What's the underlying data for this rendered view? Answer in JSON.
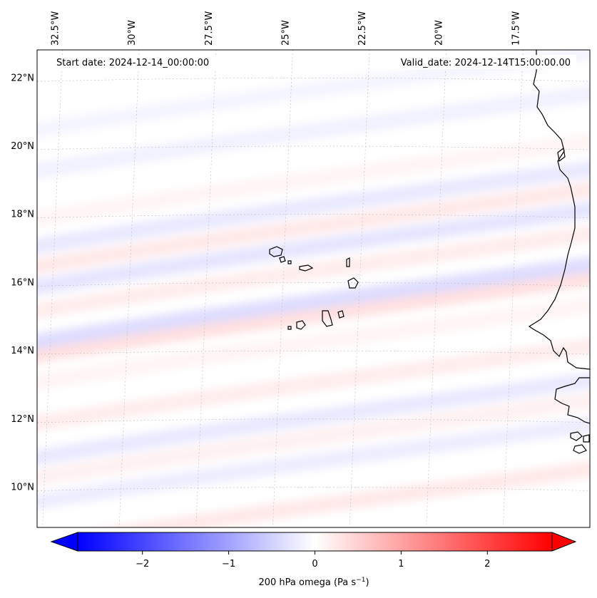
{
  "map": {
    "start_label": "Start date: 2024-12-14_00:00:00",
    "valid_label": "Valid_date: 2024-12-14T15:00:00.00",
    "lon_min": -33.0,
    "lon_max": -15.0,
    "lat_min": 8.8,
    "lat_max": 22.8,
    "lon_ticks": [
      {
        "value": -32.5,
        "label": "32.5°W"
      },
      {
        "value": -30.0,
        "label": "30°W"
      },
      {
        "value": -27.5,
        "label": "27.5°W"
      },
      {
        "value": -25.0,
        "label": "25°W"
      },
      {
        "value": -22.5,
        "label": "22.5°W"
      },
      {
        "value": -20.0,
        "label": "20°W"
      },
      {
        "value": -17.5,
        "label": "17.5°W"
      }
    ],
    "lat_ticks": [
      {
        "value": 10,
        "label": "10°N"
      },
      {
        "value": 12,
        "label": "12°N"
      },
      {
        "value": 14,
        "label": "14°N"
      },
      {
        "value": 16,
        "label": "16°N"
      },
      {
        "value": 18,
        "label": "18°N"
      },
      {
        "value": 20,
        "label": "20°N"
      },
      {
        "value": 22,
        "label": "22°N"
      }
    ],
    "field_bands": [
      {
        "lat": 9.6,
        "value": 0.6
      },
      {
        "lat": 10.9,
        "value": -0.5
      },
      {
        "lat": 11.6,
        "value": 0.4
      },
      {
        "lat": 12.2,
        "value": -0.6
      },
      {
        "lat": 13.2,
        "value": 0.5
      },
      {
        "lat": 14.4,
        "value": 0.3
      },
      {
        "lat": 15.2,
        "value": 0.8
      },
      {
        "lat": 15.6,
        "value": -0.9
      },
      {
        "lat": 16.5,
        "value": 0.5
      },
      {
        "lat": 17.2,
        "value": -0.7
      },
      {
        "lat": 17.8,
        "value": 0.6
      },
      {
        "lat": 18.4,
        "value": -0.6
      },
      {
        "lat": 19.2,
        "value": 0.3
      },
      {
        "lat": 20.6,
        "value": -0.4
      },
      {
        "lat": 21.8,
        "value": -0.3
      }
    ],
    "colors": {
      "negative": "#0000ff",
      "zero": "#ffffff",
      "positive": "#ff0000",
      "coastline": "#000000"
    }
  },
  "colorbar": {
    "min": -2.75,
    "max": 2.75,
    "ticks": [
      {
        "value": -2,
        "label": "−2"
      },
      {
        "value": -1,
        "label": "−1"
      },
      {
        "value": 0,
        "label": "0"
      },
      {
        "value": 1,
        "label": "1"
      },
      {
        "value": 2,
        "label": "2"
      }
    ],
    "label_main": "200 hPa omega (Pa s",
    "label_sup": "−1",
    "label_end": ")"
  }
}
